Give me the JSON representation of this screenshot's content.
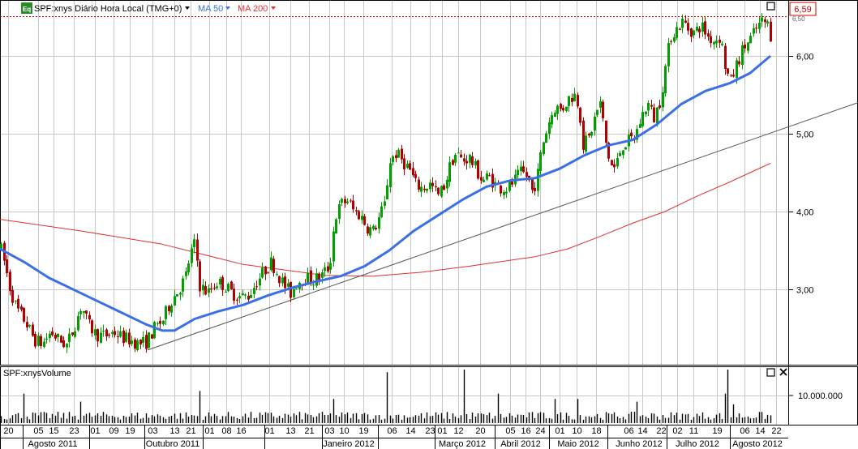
{
  "header": {
    "badge": "Eq",
    "symbol_label": "SPF:xnys Diário Hora Local (TMG+0)",
    "ma50_label": "MA 50",
    "ma200_label": "MA 200",
    "last_price": "6,59",
    "hidden_tick": "6,50"
  },
  "volume_panel": {
    "title": "SPF:xnysVolume",
    "y_tick": "10.000.000"
  },
  "colors": {
    "up": "#00a000",
    "down": "#b00000",
    "ma50": "#3a6fe8",
    "ma200": "#e03030",
    "trendline": "#555555",
    "volume": "#000000",
    "grid": "#c8c8c8",
    "price_marker": "#d00000"
  },
  "icons": {
    "maximize": "square-icon",
    "close": "close-x-icon"
  },
  "chart_data": {
    "type": "candlestick",
    "y_ticks": [
      "3,00",
      "4,00",
      "5,00",
      "6,00"
    ],
    "y_tick_values": [
      3,
      4,
      5,
      6
    ],
    "ylim": [
      1.75,
      7.0
    ],
    "x_tick_labels": [
      "20",
      "05",
      "15",
      "23",
      "01",
      "09",
      "19",
      "03",
      "13",
      "21",
      "01",
      "08",
      "16",
      "01",
      "13",
      "21",
      "03",
      "10",
      "19",
      "06",
      "14",
      "23",
      "01",
      "12",
      "20",
      "05",
      "16",
      "24",
      "01",
      "10",
      "18",
      "06",
      "14",
      "22",
      "02",
      "11",
      "19",
      "06",
      "14",
      "22"
    ],
    "month_labels": [
      "Agosto 2011",
      "Outubro 2011",
      "Janeiro 2012",
      "Março 2012",
      "Abril 2012",
      "Maio 2012",
      "Junho 2012",
      "Julho 2012",
      "Agosto 2012"
    ],
    "price_path": [
      [
        0,
        3.55
      ],
      [
        6,
        3.3
      ],
      [
        12,
        3.0
      ],
      [
        20,
        2.75
      ],
      [
        30,
        2.6
      ],
      [
        42,
        2.35
      ],
      [
        52,
        2.3
      ],
      [
        62,
        2.45
      ],
      [
        72,
        2.35
      ],
      [
        82,
        2.28
      ],
      [
        92,
        2.55
      ],
      [
        100,
        2.8
      ],
      [
        108,
        2.55
      ],
      [
        118,
        2.42
      ],
      [
        128,
        2.4
      ],
      [
        140,
        2.45
      ],
      [
        150,
        2.38
      ],
      [
        160,
        2.35
      ],
      [
        170,
        2.3
      ],
      [
        180,
        2.32
      ],
      [
        190,
        2.5
      ],
      [
        200,
        2.6
      ],
      [
        210,
        2.85
      ],
      [
        220,
        3.0
      ],
      [
        228,
        3.15
      ],
      [
        234,
        3.45
      ],
      [
        240,
        3.6
      ],
      [
        246,
        3.05
      ],
      [
        256,
        2.95
      ],
      [
        266,
        3.1
      ],
      [
        276,
        3.05
      ],
      [
        286,
        2.95
      ],
      [
        296,
        2.9
      ],
      [
        306,
        2.92
      ],
      [
        316,
        3.1
      ],
      [
        326,
        3.25
      ],
      [
        334,
        3.35
      ],
      [
        342,
        3.2
      ],
      [
        350,
        3.05
      ],
      [
        358,
        2.95
      ],
      [
        366,
        3.1
      ],
      [
        376,
        3.15
      ],
      [
        386,
        3.12
      ],
      [
        396,
        3.18
      ],
      [
        406,
        3.3
      ],
      [
        412,
        3.9
      ],
      [
        420,
        4.1
      ],
      [
        428,
        4.15
      ],
      [
        436,
        4.0
      ],
      [
        444,
        3.95
      ],
      [
        452,
        3.8
      ],
      [
        460,
        3.75
      ],
      [
        468,
        3.95
      ],
      [
        474,
        4.1
      ],
      [
        480,
        4.65
      ],
      [
        488,
        4.75
      ],
      [
        496,
        4.65
      ],
      [
        504,
        4.55
      ],
      [
        512,
        4.35
      ],
      [
        520,
        4.3
      ],
      [
        530,
        4.35
      ],
      [
        540,
        4.2
      ],
      [
        548,
        4.35
      ],
      [
        556,
        4.65
      ],
      [
        562,
        4.75
      ],
      [
        570,
        4.65
      ],
      [
        578,
        4.7
      ],
      [
        586,
        4.55
      ],
      [
        594,
        4.4
      ],
      [
        602,
        4.45
      ],
      [
        610,
        4.35
      ],
      [
        618,
        4.3
      ],
      [
        626,
        4.3
      ],
      [
        634,
        4.4
      ],
      [
        642,
        4.5
      ],
      [
        650,
        4.45
      ],
      [
        656,
        4.25
      ],
      [
        662,
        4.45
      ],
      [
        668,
        4.85
      ],
      [
        676,
        5.15
      ],
      [
        684,
        5.35
      ],
      [
        692,
        5.3
      ],
      [
        700,
        5.45
      ],
      [
        708,
        5.5
      ],
      [
        714,
        5.35
      ],
      [
        718,
        4.85
      ],
      [
        726,
        4.95
      ],
      [
        734,
        5.25
      ],
      [
        740,
        5.4
      ],
      [
        746,
        4.9
      ],
      [
        752,
        4.6
      ],
      [
        758,
        4.55
      ],
      [
        766,
        4.85
      ],
      [
        774,
        4.9
      ],
      [
        782,
        4.95
      ],
      [
        790,
        5.2
      ],
      [
        798,
        5.4
      ],
      [
        806,
        5.2
      ],
      [
        814,
        5.45
      ],
      [
        820,
        5.85
      ],
      [
        826,
        6.25
      ],
      [
        834,
        6.35
      ],
      [
        842,
        6.45
      ],
      [
        848,
        6.35
      ],
      [
        856,
        6.3
      ],
      [
        864,
        6.4
      ],
      [
        872,
        6.25
      ],
      [
        880,
        6.2
      ],
      [
        888,
        6.25
      ],
      [
        894,
        5.85
      ],
      [
        900,
        5.65
      ],
      [
        908,
        5.9
      ],
      [
        916,
        6.1
      ],
      [
        924,
        6.2
      ],
      [
        932,
        6.35
      ],
      [
        940,
        6.45
      ],
      [
        946,
        6.4
      ],
      [
        950,
        6.25
      ]
    ],
    "ma50_path": [
      [
        0,
        3.52
      ],
      [
        30,
        3.35
      ],
      [
        60,
        3.15
      ],
      [
        100,
        2.95
      ],
      [
        140,
        2.75
      ],
      [
        180,
        2.55
      ],
      [
        200,
        2.47
      ],
      [
        215,
        2.47
      ],
      [
        240,
        2.62
      ],
      [
        270,
        2.72
      ],
      [
        300,
        2.8
      ],
      [
        330,
        2.92
      ],
      [
        360,
        3.02
      ],
      [
        390,
        3.1
      ],
      [
        420,
        3.17
      ],
      [
        450,
        3.3
      ],
      [
        480,
        3.5
      ],
      [
        510,
        3.75
      ],
      [
        540,
        3.95
      ],
      [
        570,
        4.15
      ],
      [
        600,
        4.32
      ],
      [
        630,
        4.4
      ],
      [
        660,
        4.43
      ],
      [
        690,
        4.55
      ],
      [
        720,
        4.72
      ],
      [
        750,
        4.85
      ],
      [
        780,
        4.92
      ],
      [
        810,
        5.12
      ],
      [
        840,
        5.38
      ],
      [
        870,
        5.55
      ],
      [
        900,
        5.65
      ],
      [
        925,
        5.78
      ],
      [
        950,
        6.0
      ]
    ],
    "ma200_path": [
      [
        0,
        3.9
      ],
      [
        100,
        3.75
      ],
      [
        200,
        3.58
      ],
      [
        300,
        3.32
      ],
      [
        400,
        3.18
      ],
      [
        460,
        3.17
      ],
      [
        520,
        3.22
      ],
      [
        580,
        3.3
      ],
      [
        660,
        3.42
      ],
      [
        700,
        3.52
      ],
      [
        740,
        3.68
      ],
      [
        780,
        3.85
      ],
      [
        820,
        4.0
      ],
      [
        860,
        4.2
      ],
      [
        900,
        4.38
      ],
      [
        950,
        4.62
      ]
    ],
    "trendline": [
      [
        182,
        2.22
      ],
      [
        1058,
        5.4
      ]
    ],
    "candle_seed": 7,
    "volume_baseline": 6000000,
    "volume_spikes": [
      [
        30,
        0.55
      ],
      [
        100,
        0.4
      ],
      [
        245,
        0.6
      ],
      [
        410,
        0.45
      ],
      [
        478,
        0.95
      ],
      [
        570,
        1.0
      ],
      [
        614,
        0.55
      ],
      [
        682,
        0.45
      ],
      [
        712,
        0.45
      ],
      [
        784,
        0.4
      ],
      [
        892,
        0.55
      ],
      [
        898,
        1.0
      ],
      [
        904,
        0.35
      ]
    ],
    "volume_ylim_label_value": 10000000
  }
}
